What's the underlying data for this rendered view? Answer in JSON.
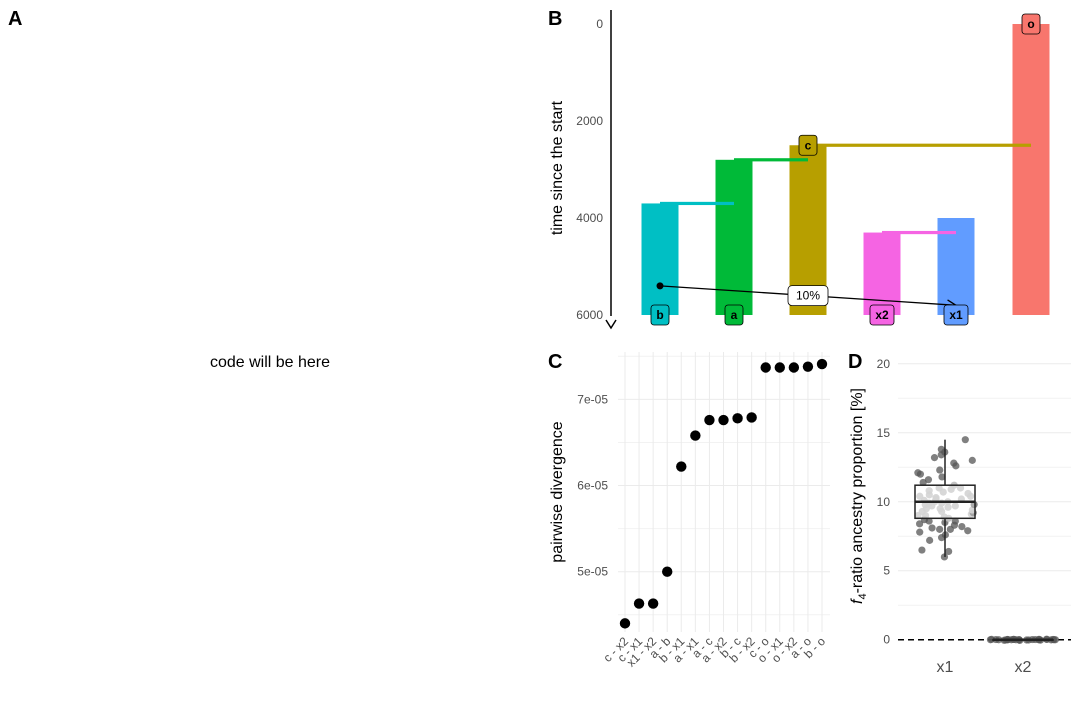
{
  "panel_labels": {
    "a": "A",
    "b": "B",
    "c": "C",
    "d": "D"
  },
  "code_placeholder": "code will be here",
  "chart_data": [
    {
      "panel": "B",
      "type": "tree",
      "ylabel": "time since the start",
      "yticks": [
        0,
        2000,
        4000,
        6000
      ],
      "ylim": [
        0,
        6000
      ],
      "populations": [
        {
          "name": "b",
          "color": "#00BFC4",
          "start": 3700,
          "end": 6000
        },
        {
          "name": "a",
          "color": "#00BA38",
          "start": 2800,
          "end": 6000
        },
        {
          "name": "c",
          "color": "#B79F00",
          "start": 2500,
          "end": 6000
        },
        {
          "name": "x2",
          "color": "#F564E3",
          "start": 4300,
          "end": 6000
        },
        {
          "name": "x1",
          "color": "#619CFF",
          "start": 4000,
          "end": 6000
        },
        {
          "name": "o",
          "color": "#F8766D",
          "start": 0,
          "end": 6000
        }
      ],
      "splits": [
        {
          "from": "a",
          "to": "b",
          "time": 3700
        },
        {
          "from": "c",
          "to": "a",
          "time": 2800
        },
        {
          "from": "o",
          "to": "c",
          "time": 2500
        },
        {
          "from": "x1",
          "to": "x2",
          "time": 4300
        }
      ],
      "label_c": "c",
      "label_o": "o",
      "gene_flow": {
        "from": "b",
        "to": "x1",
        "start": 5400,
        "end": 5800,
        "label": "10%"
      }
    },
    {
      "panel": "C",
      "type": "scatter",
      "ylabel": "pairwise divergence",
      "categories": [
        "c - x2",
        "c - x1",
        "x1 - x2",
        "a - b",
        "b - x1",
        "a - x1",
        "a - c",
        "a - x2",
        "b - c",
        "b - x2",
        "c - o",
        "o - x1",
        "o - x2",
        "a - o",
        "b - o"
      ],
      "values": [
        4.4e-05,
        4.63e-05,
        4.63e-05,
        5e-05,
        6.22e-05,
        6.58e-05,
        6.76e-05,
        6.76e-05,
        6.78e-05,
        6.79e-05,
        7.37e-05,
        7.37e-05,
        7.37e-05,
        7.38e-05,
        7.41e-05
      ],
      "yticks": [
        "5e-05",
        "6e-05",
        "7e-05"
      ],
      "ytick_values": [
        5e-05,
        6e-05,
        7e-05
      ],
      "ylim": [
        4.3e-05,
        7.55e-05
      ]
    },
    {
      "panel": "D",
      "type": "boxplot",
      "ylabel_pre": "f",
      "ylabel_sub": "4",
      "ylabel_post": "-ratio ancestry proportion [%]",
      "categories": [
        "x1",
        "x2"
      ],
      "yticks": [
        0,
        5,
        10,
        15,
        20
      ],
      "ylim": [
        -0.6,
        21
      ],
      "box": [
        {
          "name": "x1",
          "min": 6.0,
          "q1": 8.8,
          "median": 10.0,
          "q3": 11.2,
          "max": 14.5
        },
        {
          "name": "x2",
          "min": -0.05,
          "q1": 0.0,
          "median": 0.0,
          "q3": 0.0,
          "max": 0.05
        }
      ],
      "reference_line": 0,
      "points_x1": [
        6.0,
        6.4,
        6.5,
        7.2,
        7.4,
        7.6,
        7.8,
        7.9,
        8.0,
        8.0,
        8.1,
        8.2,
        8.3,
        8.4,
        8.5,
        8.6,
        8.6,
        8.7,
        8.8,
        8.9,
        9.0,
        9.0,
        9.1,
        9.2,
        9.3,
        9.3,
        9.4,
        9.5,
        9.5,
        9.6,
        9.7,
        9.7,
        9.8,
        9.8,
        9.9,
        9.9,
        10.0,
        10.0,
        10.1,
        10.2,
        10.2,
        10.3,
        10.4,
        10.4,
        10.5,
        10.6,
        10.7,
        10.8,
        10.9,
        11.0,
        11.0,
        11.2,
        11.4,
        11.6,
        11.8,
        12.0,
        12.1,
        12.3,
        12.6,
        12.8,
        13.0,
        13.2,
        13.4,
        13.6,
        13.8,
        14.5
      ],
      "points_x2": [
        -0.05,
        0.0,
        0.02,
        -0.02,
        0.03,
        0.0,
        0.01,
        -0.03,
        0.04,
        0.0,
        -0.01,
        0.02,
        0.0,
        0.01,
        -0.02,
        0.03,
        0.0,
        0.02,
        -0.04,
        0.0,
        0.01,
        0.0,
        -0.01,
        0.02,
        0.0,
        0.03,
        -0.02,
        0.0,
        0.01,
        0.0
      ]
    }
  ]
}
